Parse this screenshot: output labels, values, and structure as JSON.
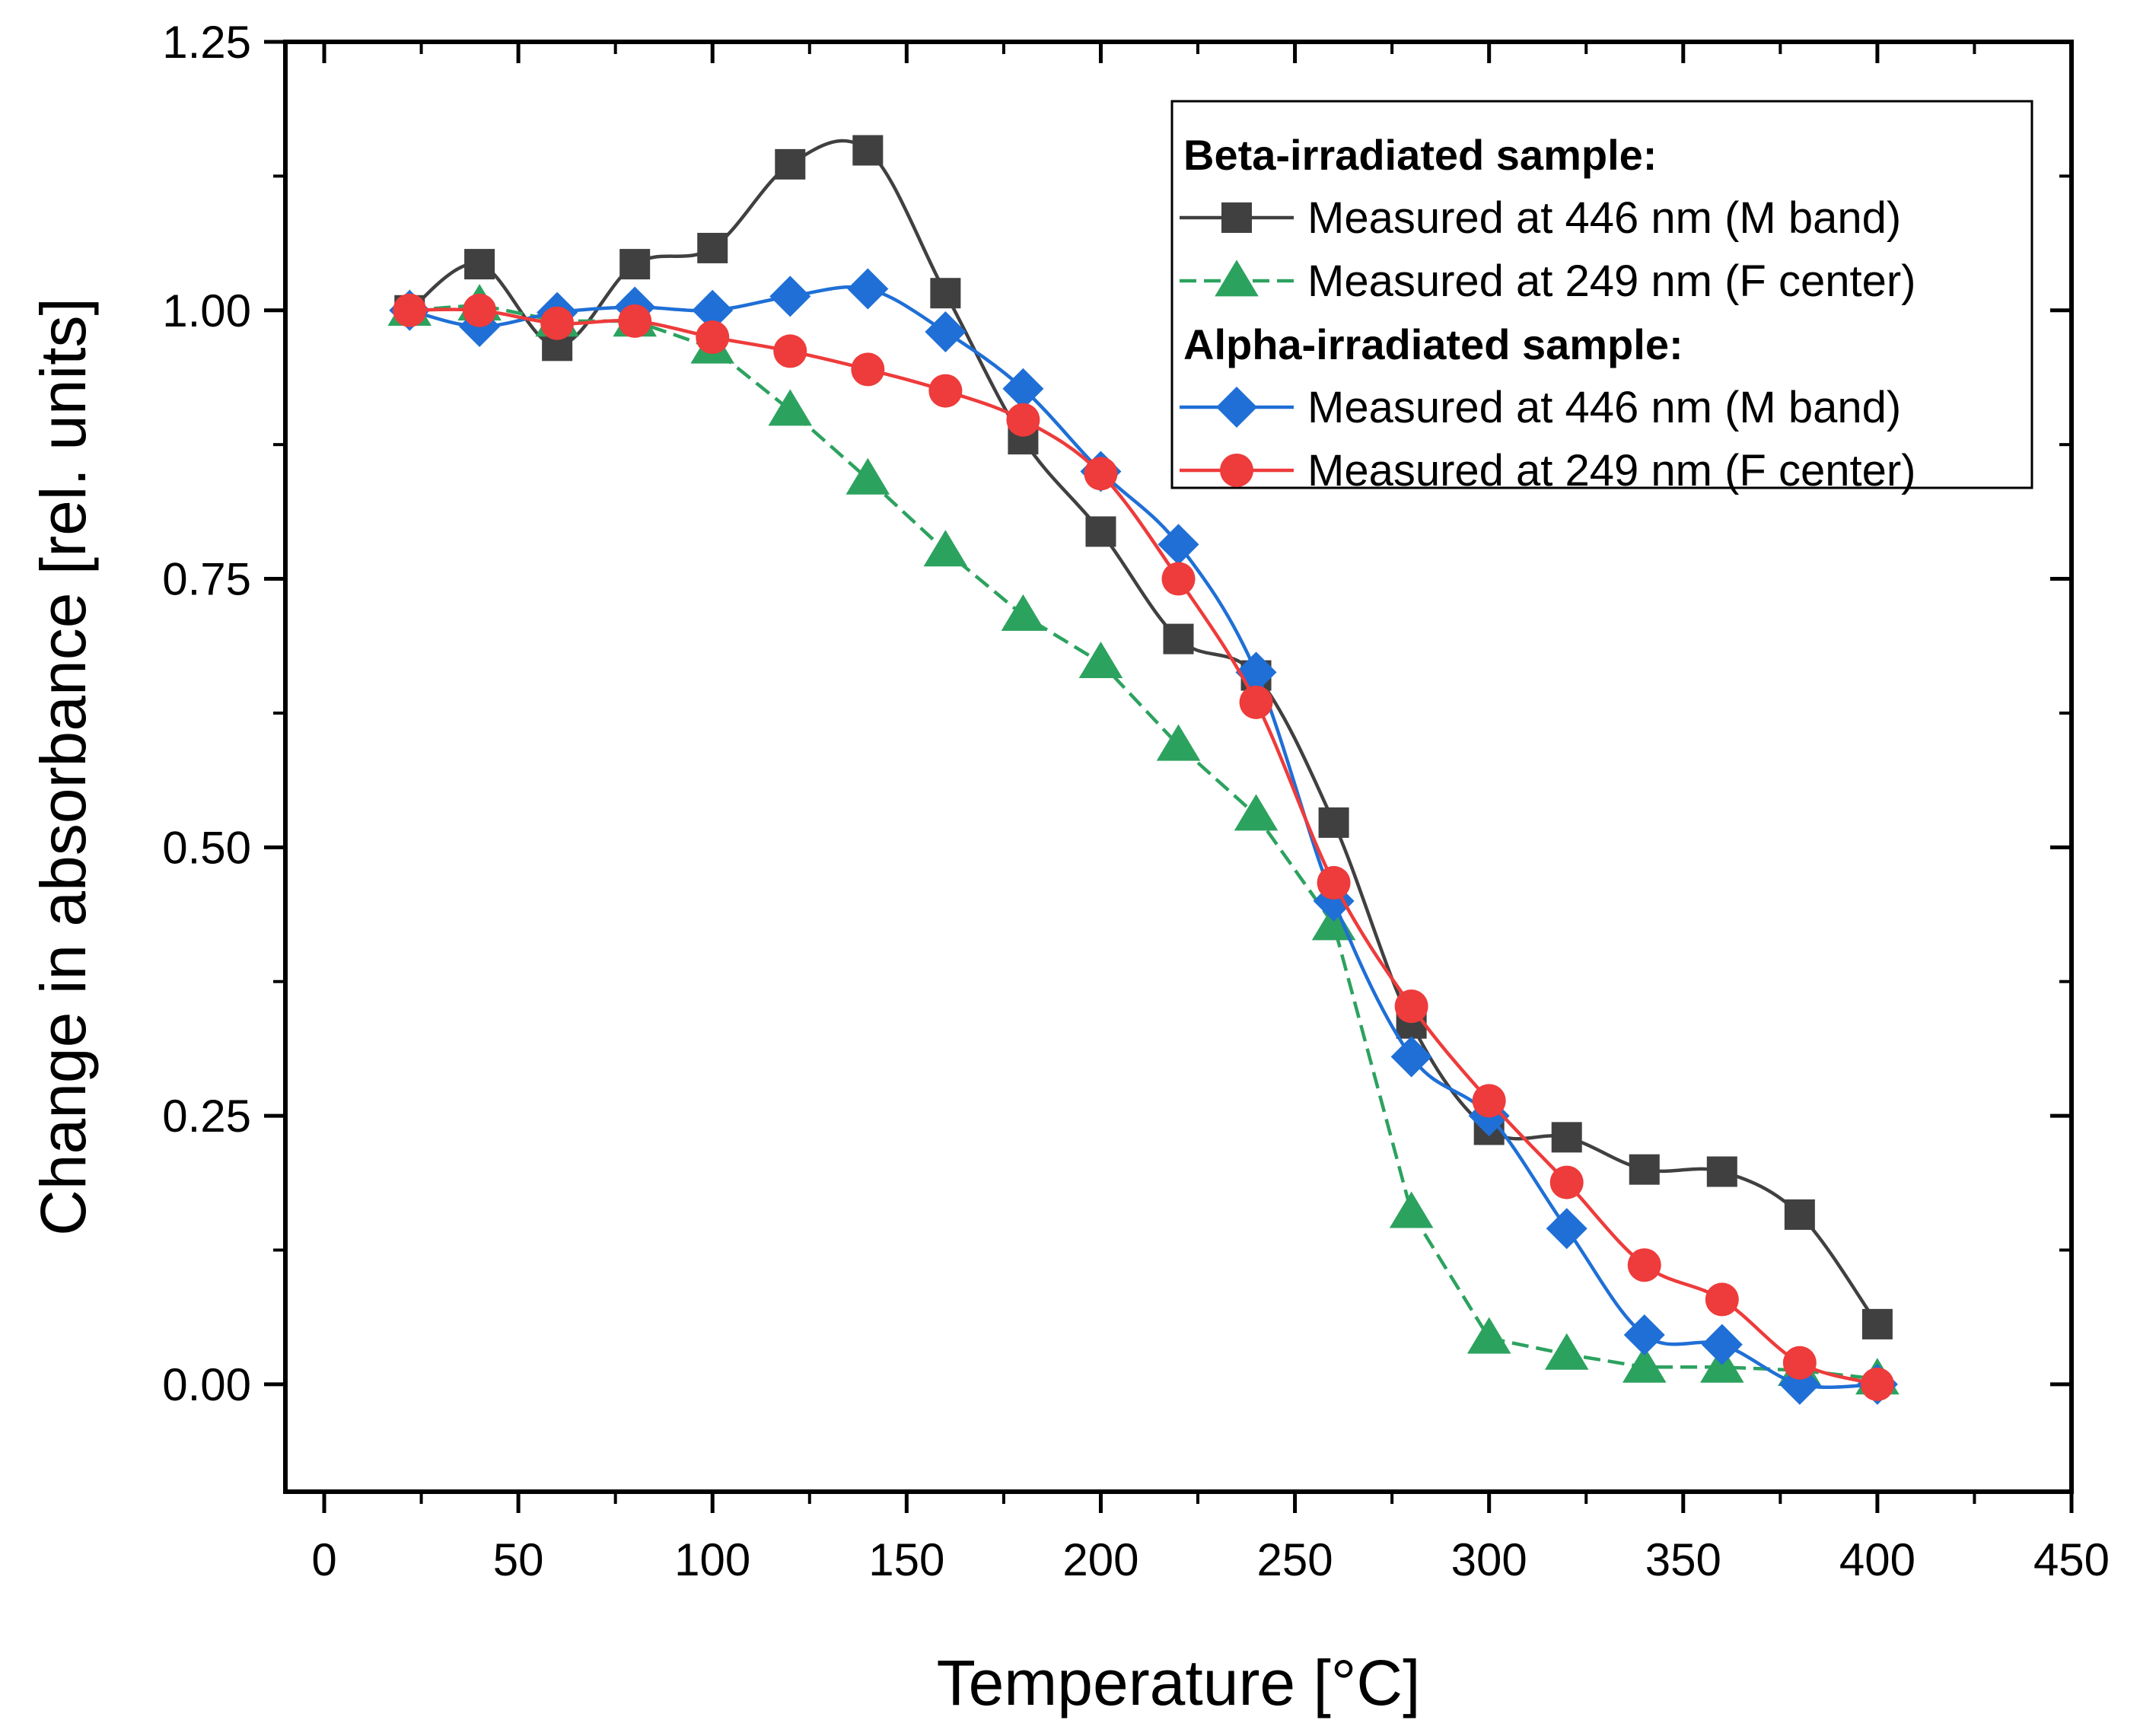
{
  "chart_data": {
    "type": "line",
    "title": "",
    "xlabel": "Temperature [°C]",
    "ylabel": "Change in absorbance [rel. units]",
    "xlim": [
      -10,
      450
    ],
    "ylim": [
      -0.1,
      1.25
    ],
    "xticks": [
      0,
      50,
      100,
      150,
      200,
      250,
      300,
      350,
      400,
      450
    ],
    "xtick_labels": [
      "0",
      "50",
      "100",
      "150",
      "200",
      "250",
      "300",
      "350",
      "400",
      "450"
    ],
    "yticks": [
      0.0,
      0.25,
      0.5,
      0.75,
      1.0,
      1.25
    ],
    "ytick_labels": [
      "0.00",
      "0.25",
      "0.50",
      "0.75",
      "1.00",
      "1.25"
    ],
    "grid": false,
    "legend_position": "top-right",
    "legend_groups": [
      {
        "heading": "Beta-irradiated sample:",
        "series_indices": [
          0,
          1
        ]
      },
      {
        "heading": "Alpha-irradiated sample:",
        "series_indices": [
          2,
          3
        ]
      }
    ],
    "series": [
      {
        "name": "Measured at 446 nm (M band)",
        "group": "Beta-irradiated sample:",
        "color": "#404040",
        "marker": "square",
        "line_style": "smooth",
        "x": [
          22,
          40,
          60,
          80,
          100,
          120,
          140,
          160,
          180,
          200,
          220,
          240,
          260,
          280,
          300,
          320,
          340,
          360,
          380,
          400
        ],
        "values": [
          1.0,
          1.043,
          0.967,
          1.043,
          1.058,
          1.136,
          1.149,
          1.016,
          0.88,
          0.794,
          0.694,
          0.66,
          0.523,
          0.336,
          0.237,
          0.23,
          0.2,
          0.198,
          0.158,
          0.056
        ]
      },
      {
        "name": "Measured at 249 nm (F center)",
        "group": "Beta-irradiated sample:",
        "color": "#2ca25f",
        "marker": "triangle",
        "line_style": "dashed",
        "x": [
          22,
          40,
          60,
          80,
          100,
          120,
          140,
          160,
          180,
          200,
          220,
          240,
          260,
          280,
          300,
          320,
          340,
          360,
          380,
          400
        ],
        "values": [
          1.0,
          1.005,
          0.99,
          0.99,
          0.965,
          0.907,
          0.843,
          0.776,
          0.716,
          0.672,
          0.595,
          0.53,
          0.428,
          0.16,
          0.043,
          0.028,
          0.016,
          0.016,
          0.013,
          0.005
        ]
      },
      {
        "name": "Measured at 446 nm (M band)",
        "group": "Alpha-irradiated sample:",
        "color": "#1f6fd6",
        "marker": "diamond",
        "line_style": "smooth",
        "x": [
          22,
          40,
          60,
          80,
          100,
          120,
          140,
          160,
          180,
          200,
          220,
          240,
          260,
          280,
          300,
          320,
          340,
          360,
          380,
          400
        ],
        "values": [
          1.0,
          0.985,
          0.998,
          1.003,
          1.0,
          1.013,
          1.02,
          0.98,
          0.927,
          0.85,
          0.782,
          0.663,
          0.45,
          0.305,
          0.25,
          0.145,
          0.046,
          0.037,
          0.0,
          0.0
        ]
      },
      {
        "name": "Measured at 249 nm (F center)",
        "group": "Alpha-irradiated sample:",
        "color": "#ee3b3b",
        "marker": "circle",
        "line_style": "smooth",
        "x": [
          22,
          40,
          60,
          80,
          100,
          120,
          140,
          160,
          180,
          200,
          220,
          240,
          260,
          280,
          300,
          320,
          340,
          360,
          380,
          400
        ],
        "values": [
          1.0,
          1.0,
          0.988,
          0.99,
          0.975,
          0.962,
          0.945,
          0.925,
          0.898,
          0.848,
          0.75,
          0.635,
          0.467,
          0.352,
          0.264,
          0.188,
          0.111,
          0.079,
          0.02,
          0.0
        ]
      }
    ]
  }
}
